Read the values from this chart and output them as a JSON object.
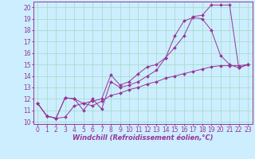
{
  "xlabel": "Windchill (Refroidissement éolien,°C)",
  "bg_color": "#cceeff",
  "grid_color": "#aaddcc",
  "line_color": "#993399",
  "spine_color": "#993399",
  "xlim": [
    -0.5,
    23.5
  ],
  "ylim": [
    9.8,
    20.5
  ],
  "xticks": [
    0,
    1,
    2,
    3,
    4,
    5,
    6,
    7,
    8,
    9,
    10,
    11,
    12,
    13,
    14,
    15,
    16,
    17,
    18,
    19,
    20,
    21,
    22,
    23
  ],
  "yticks": [
    10,
    11,
    12,
    13,
    14,
    15,
    16,
    17,
    18,
    19,
    20
  ],
  "line1_x": [
    0,
    1,
    2,
    3,
    4,
    5,
    6,
    7,
    8,
    9,
    10,
    11,
    12,
    13,
    14,
    15,
    16,
    17,
    18,
    19,
    20,
    21,
    22,
    23
  ],
  "line1_y": [
    11.6,
    10.5,
    10.3,
    12.1,
    12.0,
    11.0,
    12.0,
    11.1,
    13.5,
    13.0,
    13.2,
    13.5,
    14.0,
    14.5,
    15.6,
    16.5,
    17.5,
    19.2,
    19.3,
    20.2,
    20.2,
    20.2,
    14.7,
    15.0
  ],
  "line2_x": [
    0,
    1,
    2,
    3,
    4,
    5,
    6,
    7,
    8,
    9,
    10,
    11,
    12,
    13,
    14,
    15,
    16,
    17,
    18,
    19,
    20,
    21,
    22,
    23
  ],
  "line2_y": [
    11.6,
    10.5,
    10.3,
    12.1,
    12.0,
    11.6,
    11.8,
    12.0,
    14.1,
    13.2,
    13.5,
    14.2,
    14.8,
    15.0,
    15.6,
    17.5,
    18.8,
    19.1,
    19.0,
    18.0,
    15.8,
    15.0,
    14.7,
    15.0
  ],
  "line3_x": [
    0,
    1,
    2,
    3,
    4,
    5,
    6,
    7,
    8,
    9,
    10,
    11,
    12,
    13,
    14,
    15,
    16,
    17,
    18,
    19,
    20,
    21,
    22,
    23
  ],
  "line3_y": [
    11.6,
    10.5,
    10.3,
    10.4,
    11.4,
    11.6,
    11.4,
    11.8,
    12.3,
    12.5,
    12.8,
    13.0,
    13.3,
    13.5,
    13.8,
    14.0,
    14.2,
    14.4,
    14.6,
    14.8,
    14.9,
    14.9,
    14.9,
    15.0
  ],
  "tick_fontsize": 5.5,
  "xlabel_fontsize": 6.0,
  "marker_size": 2.0,
  "line_width": 0.7
}
